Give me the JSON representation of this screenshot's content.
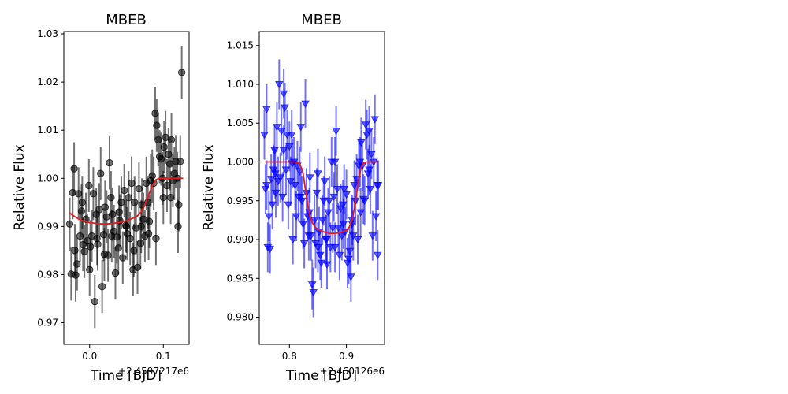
{
  "chart_data": [
    {
      "type": "scatter",
      "title": "MBEB",
      "xlabel": "Time [BJD]",
      "ylabel": "Relative Flux",
      "x_offset_label": "+2.4597217e6",
      "xlim": [
        -0.035,
        0.135
      ],
      "ylim": [
        0.9655,
        1.0305
      ],
      "xticks": [
        0.0,
        0.1
      ],
      "xtick_labels": [
        "0.0",
        "0.1"
      ],
      "yticks": [
        0.97,
        0.98,
        0.99,
        1.0,
        1.01,
        1.02,
        1.03
      ],
      "ytick_labels": [
        "0.97",
        "0.98",
        "0.99",
        "1.00",
        "1.01",
        "1.02",
        "1.03"
      ],
      "grid": false,
      "series": [
        {
          "kind": "points-with-errorbars",
          "marker": "circle",
          "color": "#000000",
          "x": [
            -0.027,
            -0.025,
            -0.023,
            -0.021,
            -0.019,
            -0.017,
            -0.015,
            -0.013,
            -0.011,
            -0.009,
            -0.007,
            -0.005,
            -0.003,
            -0.001,
            0.001,
            0.003,
            0.005,
            0.007,
            0.009,
            0.011,
            0.013,
            0.015,
            0.017,
            0.019,
            0.021,
            0.023,
            0.025,
            0.027,
            0.029,
            0.031,
            0.033,
            0.035,
            0.037,
            0.039,
            0.041,
            0.043,
            0.045,
            0.047,
            0.049,
            0.051,
            0.053,
            0.055,
            0.057,
            0.059,
            0.061,
            0.063,
            0.065,
            0.067,
            0.069,
            0.071,
            0.073,
            0.075,
            0.077,
            0.079,
            0.081,
            0.083,
            0.085,
            0.087,
            0.089,
            0.091,
            0.093,
            0.095,
            0.097,
            0.099,
            0.101,
            0.103,
            0.105,
            0.107,
            0.109,
            0.111,
            0.113,
            0.115,
            0.117,
            0.119,
            0.121,
            0.123,
            0.125,
            -0.02,
            0.0,
            0.02,
            0.04,
            0.06,
            0.08,
            0.1,
            0.12,
            -0.01,
            0.01,
            0.03,
            0.05,
            0.07,
            0.09,
            0.11
          ],
          "y": [
            0.9905,
            0.9801,
            0.997,
            1.002,
            0.9799,
            0.9822,
            0.9968,
            0.988,
            0.9932,
            0.9862,
            0.9848,
            0.9915,
            0.987,
            0.9985,
            0.9858,
            0.988,
            0.9968,
            0.9744,
            0.9925,
            0.9863,
            0.9935,
            1.001,
            0.9775,
            0.9883,
            0.994,
            0.992,
            0.984,
            1.0032,
            0.996,
            0.9925,
            0.989,
            0.9803,
            0.9878,
            0.9855,
            0.9912,
            0.995,
            0.9835,
            0.9975,
            0.9902,
            0.9885,
            0.996,
            0.9875,
            0.999,
            0.981,
            0.995,
            0.9897,
            0.9815,
            0.9978,
            0.9865,
            0.9945,
            0.9915,
            0.988,
            0.999,
            0.995,
            0.991,
            0.9995,
            1.0005,
            0.999,
            1.0135,
            1.011,
            1.008,
            1.0045,
            1.004,
            1.0,
            1.0065,
            1.0085,
            0.9985,
            1.005,
            1.003,
            1.008,
            0.9995,
            1.001,
            1.0035,
            1.0,
            0.9945,
            1.0035,
            1.022,
            0.985,
            0.981,
            0.9842,
            0.993,
            0.985,
            0.9885,
            0.996,
            0.99,
            0.995,
            0.9875,
            0.988,
            0.99,
            0.99,
            0.9875,
            0.996
          ],
          "yerr": 0.0055
        },
        {
          "kind": "model-line",
          "color": "#e41a1c",
          "x": [
            -0.027,
            -0.02,
            -0.01,
            0.0,
            0.01,
            0.02,
            0.03,
            0.04,
            0.05,
            0.06,
            0.065,
            0.07,
            0.075,
            0.08,
            0.085,
            0.09,
            0.095,
            0.1,
            0.11,
            0.127
          ],
          "y": [
            0.9928,
            0.992,
            0.9912,
            0.9908,
            0.9906,
            0.9905,
            0.9906,
            0.9908,
            0.9912,
            0.9918,
            0.9922,
            0.993,
            0.9945,
            0.9965,
            0.9985,
            0.9997,
            1.0,
            1.0,
            1.0,
            1.0
          ]
        }
      ]
    },
    {
      "type": "scatter",
      "title": "MBEB",
      "xlabel": "Time [BJD]",
      "ylabel": "Relative Flux",
      "x_offset_label": "+2.460126e6",
      "xlim": [
        0.747,
        0.967
      ],
      "ylim": [
        0.9765,
        1.0168
      ],
      "xticks": [
        0.8,
        0.9
      ],
      "xtick_labels": [
        "0.8",
        "0.9"
      ],
      "yticks": [
        0.98,
        0.985,
        0.99,
        0.995,
        1.0,
        1.005,
        1.01,
        1.015
      ],
      "ytick_labels": [
        "0.980",
        "0.985",
        "0.990",
        "0.995",
        "1.000",
        "1.005",
        "1.010",
        "1.015"
      ],
      "grid": false,
      "series": [
        {
          "kind": "points-with-errorbars",
          "marker": "triangle-down",
          "color": "#0000ff",
          "x": [
            0.756,
            0.758,
            0.76,
            0.762,
            0.764,
            0.766,
            0.768,
            0.77,
            0.772,
            0.774,
            0.776,
            0.778,
            0.78,
            0.782,
            0.784,
            0.786,
            0.788,
            0.79,
            0.792,
            0.794,
            0.796,
            0.798,
            0.8,
            0.802,
            0.804,
            0.806,
            0.808,
            0.81,
            0.812,
            0.814,
            0.816,
            0.818,
            0.82,
            0.822,
            0.824,
            0.826,
            0.828,
            0.83,
            0.832,
            0.834,
            0.836,
            0.838,
            0.84,
            0.842,
            0.844,
            0.846,
            0.848,
            0.85,
            0.852,
            0.854,
            0.856,
            0.858,
            0.86,
            0.862,
            0.864,
            0.866,
            0.868,
            0.87,
            0.872,
            0.874,
            0.876,
            0.878,
            0.88,
            0.882,
            0.884,
            0.886,
            0.888,
            0.89,
            0.892,
            0.894,
            0.896,
            0.898,
            0.9,
            0.902,
            0.904,
            0.906,
            0.908,
            0.91,
            0.912,
            0.914,
            0.916,
            0.918,
            0.92,
            0.922,
            0.924,
            0.926,
            0.928,
            0.93,
            0.932,
            0.934,
            0.936,
            0.938,
            0.94,
            0.942,
            0.944,
            0.946,
            0.948,
            0.95,
            0.952,
            0.954,
            0.956,
            0.76,
            0.775,
            0.79,
            0.805,
            0.82,
            0.835,
            0.85,
            0.865,
            0.88,
            0.895,
            0.91,
            0.925,
            0.94,
            0.955
          ],
          "y": [
            1.0035,
            0.9965,
            1.0068,
            0.989,
            0.993,
            0.9888,
            0.9978,
            0.9945,
            0.999,
            1.0015,
            0.996,
            1.0045,
            0.9975,
            1.01,
            0.998,
            1.004,
            0.9955,
            1.0088,
            1.007,
            0.999,
            1.0035,
            0.9945,
            1.002,
            0.9975,
            1.0035,
            0.99,
            1.0,
            0.997,
            0.993,
            0.9995,
            0.9955,
            0.9988,
            1.0045,
            0.995,
            0.992,
            0.9895,
            1.0075,
            0.996,
            0.993,
            0.9905,
            0.998,
            0.9905,
            0.9842,
            0.9832,
            0.9925,
            0.9895,
            0.996,
            0.9985,
            0.991,
            0.988,
            0.987,
            0.9925,
            0.995,
            0.9975,
            0.99,
            0.9868,
            0.9935,
            0.995,
            0.989,
            1.0,
            0.9915,
            0.9955,
            1.0,
            1.004,
            0.9965,
            0.9915,
            0.988,
            0.994,
            0.9905,
            0.9945,
            0.9965,
            0.991,
            0.9958,
            0.987,
            0.9875,
            0.9885,
            0.9852,
            0.992,
            0.9905,
            0.997,
            0.995,
            0.9978,
            0.99,
            0.9995,
            1.0,
            1.0025,
            0.9995,
            0.9952,
            0.995,
            1.0048,
            1.0035,
            0.9985,
            1.004,
            0.9965,
            1.001,
            0.9905,
            1.0,
            1.0055,
            0.993,
            0.997,
            0.997,
            0.997,
            0.9985,
            1.0015,
            0.9998,
            0.9955,
            0.9935,
            0.989,
            0.99,
            0.989,
            0.992,
            0.9925,
            0.9935,
            0.999,
            0.988
          ],
          "yerr": 0.0032
        },
        {
          "kind": "model-line",
          "color": "#e41a1c",
          "x": [
            0.757,
            0.77,
            0.79,
            0.81,
            0.818,
            0.824,
            0.828,
            0.832,
            0.836,
            0.84,
            0.845,
            0.85,
            0.86,
            0.87,
            0.88,
            0.89,
            0.9,
            0.905,
            0.91,
            0.914,
            0.918,
            0.922,
            0.926,
            0.93,
            0.936,
            0.945,
            0.956
          ],
          "y": [
            1.0,
            1.0,
            1.0,
            1.0,
            0.9998,
            0.9985,
            0.9965,
            0.9945,
            0.993,
            0.9922,
            0.9916,
            0.9913,
            0.991,
            0.9908,
            0.9908,
            0.9909,
            0.9912,
            0.9916,
            0.9925,
            0.994,
            0.996,
            0.998,
            0.9993,
            0.9999,
            1.0,
            1.0,
            1.0
          ]
        }
      ]
    }
  ]
}
